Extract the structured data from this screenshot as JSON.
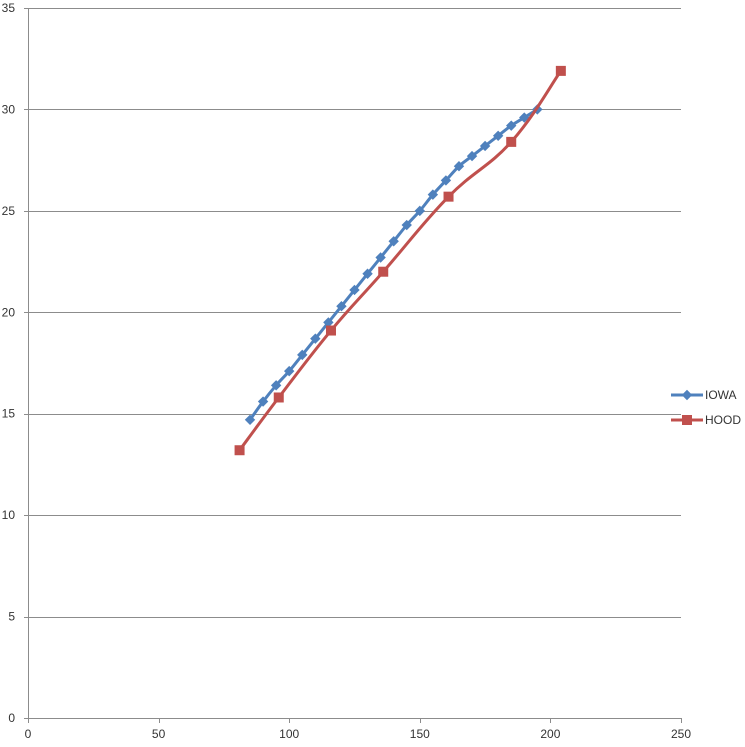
{
  "chart_data": {
    "type": "line",
    "title": "",
    "xlabel": "",
    "ylabel": "",
    "xlim": [
      0,
      250
    ],
    "ylim": [
      0,
      35
    ],
    "x_ticks": [
      0,
      50,
      100,
      150,
      200,
      250
    ],
    "y_ticks": [
      0,
      5,
      10,
      15,
      20,
      25,
      30,
      35
    ],
    "grid": "horizontal",
    "legend_position": "right",
    "series": [
      {
        "name": "IOWA",
        "color": "#4f81bd",
        "marker": "diamond",
        "points": [
          [
            85,
            14.7
          ],
          [
            90,
            15.6
          ],
          [
            95,
            16.4
          ],
          [
            100,
            17.1
          ],
          [
            105,
            17.9
          ],
          [
            110,
            18.7
          ],
          [
            115,
            19.5
          ],
          [
            120,
            20.3
          ],
          [
            125,
            21.1
          ],
          [
            130,
            21.9
          ],
          [
            135,
            22.7
          ],
          [
            140,
            23.5
          ],
          [
            145,
            24.3
          ],
          [
            150,
            25.0
          ],
          [
            155,
            25.8
          ],
          [
            160,
            26.5
          ],
          [
            165,
            27.2
          ],
          [
            170,
            27.7
          ],
          [
            175,
            28.2
          ],
          [
            180,
            28.7
          ],
          [
            185,
            29.2
          ],
          [
            190,
            29.6
          ],
          [
            195,
            30.0
          ]
        ]
      },
      {
        "name": "HOOD",
        "color": "#c0504d",
        "marker": "square",
        "points": [
          [
            81,
            13.2
          ],
          [
            96,
            15.8
          ],
          [
            116,
            19.1
          ],
          [
            136,
            22.0
          ],
          [
            161,
            25.7
          ],
          [
            185,
            28.4
          ],
          [
            204,
            31.9
          ]
        ]
      }
    ]
  }
}
